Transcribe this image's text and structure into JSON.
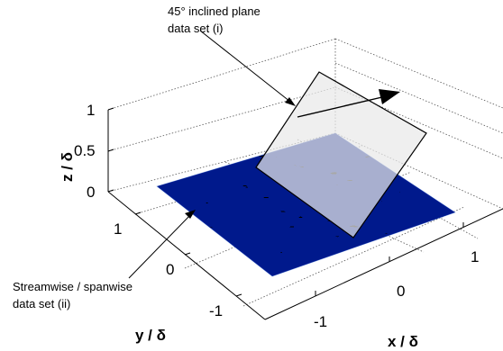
{
  "annotations": {
    "plane_line1": "45° inclined plane",
    "plane_line2": "data set (i)",
    "stream_line1": "Streamwise / spanwise",
    "stream_line2": "data set (ii)"
  },
  "axes": {
    "z_label": "z / δ",
    "y_label": "y / δ",
    "x_label": "x / δ",
    "z_ticks": [
      "0",
      "0.5",
      "1"
    ],
    "y_ticks": [
      "1",
      "0",
      "-1"
    ],
    "x_ticks": [
      "-1",
      "0",
      "1"
    ]
  },
  "colors": {
    "low": "#1433c8",
    "mid": "#f2d21e",
    "high": "#d81e14",
    "plane_fill": "#e9e9e9",
    "plane_edge": "#000000"
  },
  "icons": {
    "flow_direction": "flow-arrow-icon"
  }
}
